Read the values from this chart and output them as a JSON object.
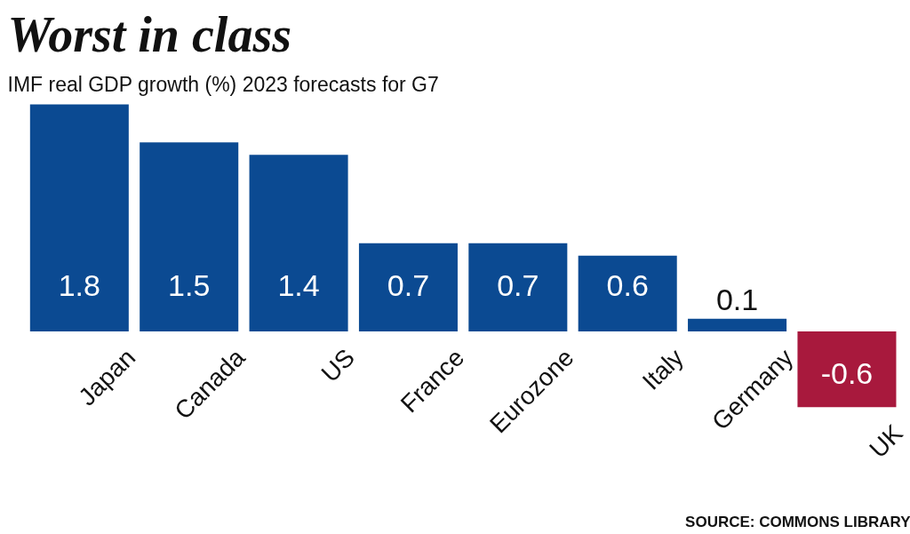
{
  "chart_data": {
    "type": "bar",
    "title": "Worst in class",
    "subtitle": "IMF real GDP growth (%) 2023 forecasts for G7",
    "categories": [
      "Japan",
      "Canada",
      "US",
      "France",
      "Eurozone",
      "Italy",
      "Germany",
      "UK"
    ],
    "values": [
      1.8,
      1.5,
      1.4,
      0.7,
      0.7,
      0.6,
      0.1,
      -0.6
    ],
    "colors": [
      "#0b4a92",
      "#0b4a92",
      "#0b4a92",
      "#0b4a92",
      "#0b4a92",
      "#0b4a92",
      "#0b4a92",
      "#a8193d"
    ],
    "data_labels": true,
    "grid": false,
    "annotations": [
      "SOURCE: COMMONS LIBRARY"
    ]
  }
}
